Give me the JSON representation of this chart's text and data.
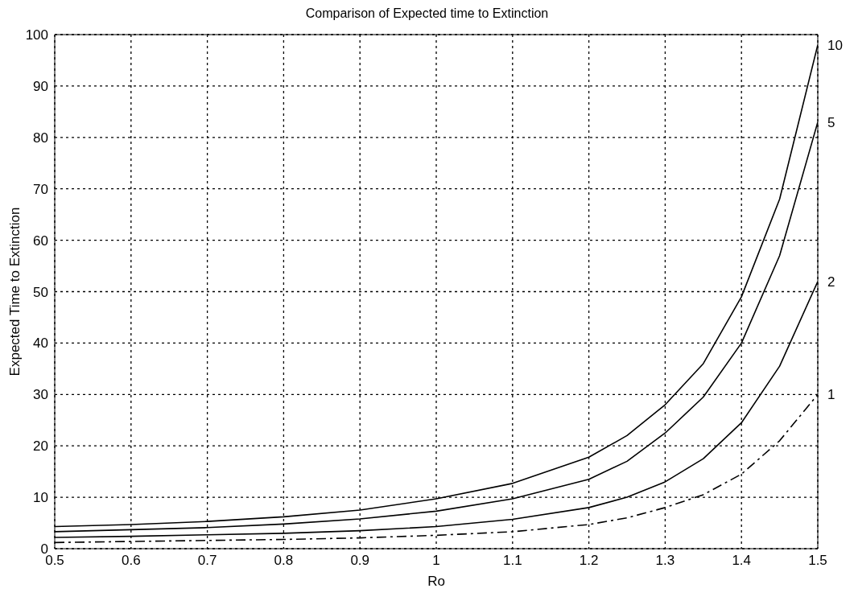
{
  "chart_data": {
    "type": "line",
    "title": "Comparison of Expected time to Extinction",
    "xlabel": "Ro",
    "ylabel": "Expected Time to Extinction",
    "x": [
      0.5,
      0.6,
      0.7,
      0.8,
      0.9,
      1.0,
      1.1,
      1.2,
      1.25,
      1.3,
      1.35,
      1.4,
      1.45,
      1.5
    ],
    "series": [
      {
        "name": "10",
        "color": "#000000",
        "line_style": "solid",
        "values": [
          4.3,
          4.7,
          5.3,
          6.2,
          7.5,
          9.7,
          12.7,
          17.8,
          22,
          28,
          36,
          49,
          68,
          98
        ]
      },
      {
        "name": "5",
        "color": "#000000",
        "line_style": "solid",
        "values": [
          3.3,
          3.7,
          4.1,
          4.8,
          5.8,
          7.3,
          9.7,
          13.5,
          17,
          22.5,
          29.5,
          40,
          57,
          83
        ]
      },
      {
        "name": "2",
        "color": "#000000",
        "line_style": "solid",
        "values": [
          2.2,
          2.4,
          2.7,
          3.0,
          3.5,
          4.3,
          5.7,
          8.0,
          10,
          13,
          17.5,
          24.5,
          35.5,
          52
        ]
      },
      {
        "name": "1",
        "color": "#000000",
        "line_style": "dashed",
        "values": [
          1.2,
          1.4,
          1.6,
          1.8,
          2.1,
          2.6,
          3.3,
          4.7,
          6,
          8,
          10.5,
          14.5,
          21,
          30
        ]
      }
    ],
    "xlim": [
      0.5,
      1.5
    ],
    "xticks": [
      0.5,
      0.6,
      0.7,
      0.8,
      0.9,
      1,
      1.1,
      1.2,
      1.3,
      1.4,
      1.5
    ],
    "ylim": [
      0,
      100
    ],
    "yticks": [
      0,
      10,
      20,
      30,
      40,
      50,
      60,
      70,
      80,
      90,
      100
    ],
    "grid": true,
    "marker": "none"
  }
}
